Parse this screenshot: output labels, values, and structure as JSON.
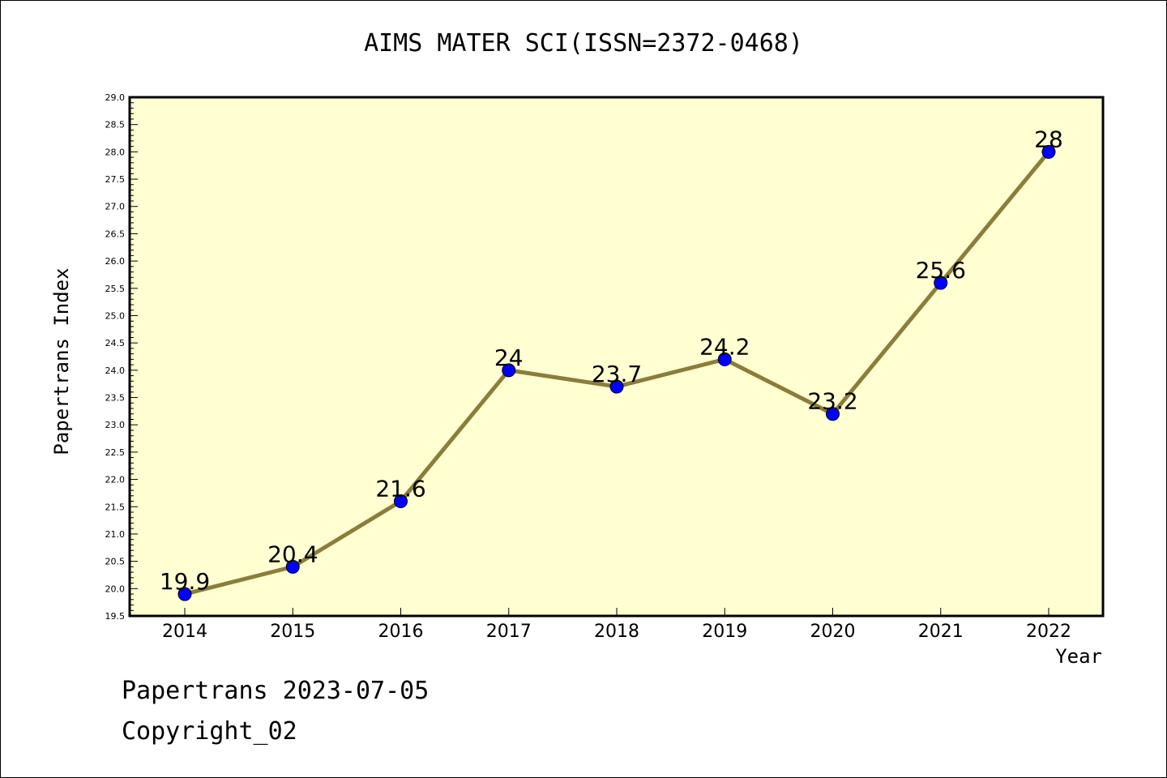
{
  "title": "AIMS MATER SCI(ISSN=2372-0468)",
  "footer": {
    "date_line": "Papertrans 2023-07-05",
    "copyright_line": "Copyright_02"
  },
  "colors": {
    "plot_background": "#ffffd2",
    "line": "#8b7d3a",
    "marker": "#0000ff"
  },
  "chart_data": {
    "type": "line",
    "xlabel": "Year",
    "ylabel": "Papertrans Index",
    "categories": [
      "2014",
      "2015",
      "2016",
      "2017",
      "2018",
      "2019",
      "2020",
      "2021",
      "2022"
    ],
    "series": [
      {
        "values": [
          19.9,
          20.4,
          21.6,
          24,
          23.7,
          24.2,
          23.2,
          25.6,
          28
        ],
        "data_labels": [
          "19.9",
          "20.4",
          "21.6",
          "24",
          "23.7",
          "24.2",
          "23.2",
          "25.6",
          "28"
        ]
      }
    ],
    "ylim": [
      19.5,
      29.0
    ],
    "yticks": [
      "19.5",
      "20.0",
      "20.5",
      "21.0",
      "21.5",
      "22.0",
      "22.5",
      "23.0",
      "23.5",
      "24.0",
      "24.5",
      "25.0",
      "25.5",
      "26.0",
      "26.5",
      "27.0",
      "27.5",
      "28.0",
      "28.5",
      "29.0"
    ],
    "grid": false,
    "legend": "none"
  }
}
